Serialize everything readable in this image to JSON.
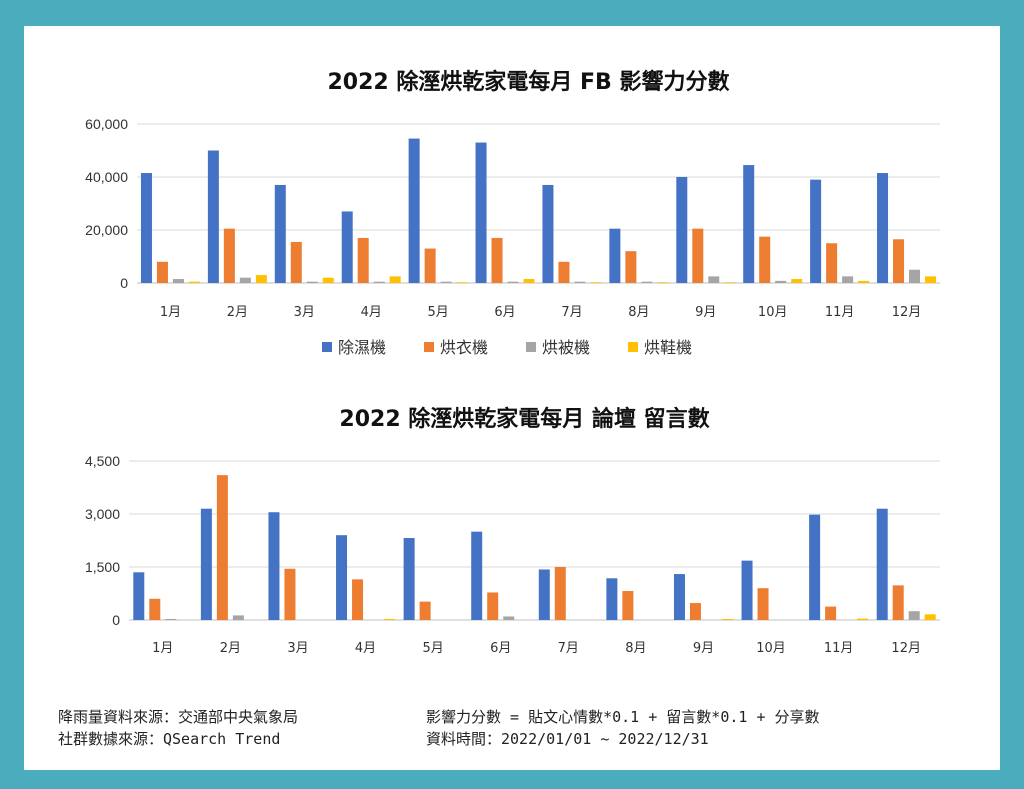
{
  "colors": {
    "dehumidifier": "#4472c4",
    "dryer": "#ed7d31",
    "futon_dryer": "#a5a5a5",
    "shoe_dryer": "#ffc000"
  },
  "chart_data": [
    {
      "type": "bar",
      "title": "2022 除溼烘乾家電每月 FB 影響力分數",
      "categories": [
        "1月",
        "2月",
        "3月",
        "4月",
        "5月",
        "6月",
        "7月",
        "8月",
        "9月",
        "10月",
        "11月",
        "12月"
      ],
      "ylim": [
        0,
        60000
      ],
      "yticks": [
        "0",
        "20,000",
        "40,000",
        "60,000"
      ],
      "ytick_values": [
        0,
        20000,
        40000,
        60000
      ],
      "grid": true,
      "legend": "bottom",
      "series": [
        {
          "name": "除濕機",
          "color_key": "dehumidifier",
          "values": [
            41500,
            50000,
            37000,
            27000,
            54500,
            53000,
            37000,
            20500,
            40000,
            44500,
            39000,
            41500
          ]
        },
        {
          "name": "烘衣機",
          "color_key": "dryer",
          "values": [
            8000,
            20500,
            15500,
            17000,
            13000,
            17000,
            8000,
            12000,
            20500,
            17500,
            15000,
            16500
          ]
        },
        {
          "name": "烘被機",
          "color_key": "futon_dryer",
          "values": [
            1500,
            2000,
            500,
            500,
            500,
            500,
            500,
            500,
            2500,
            800,
            2500,
            5000
          ]
        },
        {
          "name": "烘鞋機",
          "color_key": "shoe_dryer",
          "values": [
            500,
            3000,
            2000,
            2500,
            300,
            1500,
            300,
            300,
            300,
            1500,
            800,
            2500
          ]
        }
      ]
    },
    {
      "type": "bar",
      "title": "2022 除溼烘乾家電每月 論壇 留言數",
      "categories": [
        "1月",
        "2月",
        "3月",
        "4月",
        "5月",
        "6月",
        "7月",
        "8月",
        "9月",
        "10月",
        "11月",
        "12月"
      ],
      "ylim": [
        0,
        4500
      ],
      "yticks": [
        "0",
        "1,500",
        "3,000",
        "4,500"
      ],
      "ytick_values": [
        0,
        1500,
        3000,
        4500
      ],
      "grid": true,
      "series": [
        {
          "color_key": "dehumidifier",
          "values": [
            1350,
            3150,
            3050,
            2400,
            2320,
            2500,
            1430,
            1180,
            1300,
            1680,
            2980,
            3150
          ]
        },
        {
          "color_key": "dryer",
          "values": [
            600,
            4100,
            1450,
            1150,
            520,
            780,
            1500,
            820,
            480,
            900,
            380,
            980
          ]
        },
        {
          "color_key": "futon_dryer",
          "values": [
            30,
            130,
            0,
            0,
            0,
            100,
            0,
            0,
            0,
            0,
            0,
            250
          ]
        },
        {
          "color_key": "shoe_dryer",
          "values": [
            0,
            0,
            0,
            30,
            0,
            0,
            0,
            0,
            30,
            0,
            40,
            160
          ]
        }
      ]
    }
  ],
  "footer": {
    "left_line1": "降雨量資料來源：交通部中央氣象局",
    "left_line2": "社群數據來源：QSearch Trend",
    "right_line1": "影響力分數 = 貼文心情數*0.1 + 留言數*0.1 + 分享數",
    "right_line2": "資料時間：2022/01/01 ~ 2022/12/31"
  }
}
